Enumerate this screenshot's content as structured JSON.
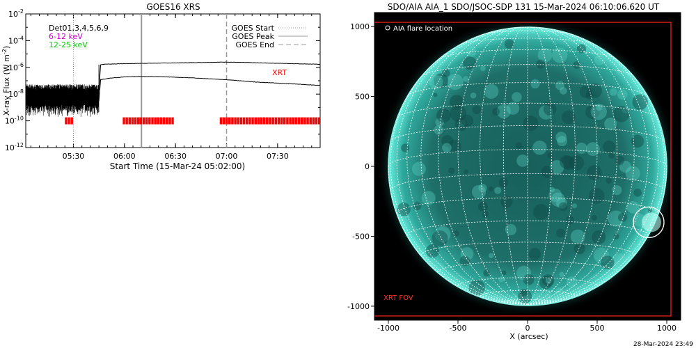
{
  "footer_timestamp": "28-Mar-2024 23:49",
  "chart_data": [
    {
      "type": "line",
      "title": "GOES16 XRS",
      "xlabel": "Start Time (15-Mar-24 05:02:00)",
      "ylabel": "X-ray Flux (W m",
      "ylabel_sup": "-2",
      "ylabel_close": ")",
      "ylim": [
        1e-12,
        0.01
      ],
      "log_y": true,
      "xlim_minutes_after_start": [
        0,
        173
      ],
      "xtick_labels": [
        "05:30",
        "06:00",
        "06:30",
        "07:00",
        "07:30"
      ],
      "xticks_minutes": [
        28,
        58,
        88,
        118,
        148
      ],
      "ytick_labels": [
        {
          "base": "10",
          "exp": "-2",
          "value": 0.01
        },
        {
          "base": "10",
          "exp": "-4",
          "value": 0.0001
        },
        {
          "base": "10",
          "exp": "-6",
          "value": 1e-06
        },
        {
          "base": "10",
          "exp": "-8",
          "value": 1e-08
        },
        {
          "base": "10",
          "exp": "-10",
          "value": 1e-10
        },
        {
          "base": "10",
          "exp": "-12",
          "value": 1e-12
        }
      ],
      "info_lines": [
        {
          "text": "Det01,3,4,5,6,9",
          "color": "#000000"
        },
        {
          "text": "6-12 keV",
          "color": "#cc00cc"
        },
        {
          "text": "12-25 keV",
          "color": "#00cc00"
        }
      ],
      "legend": [
        {
          "label": "GOES Start",
          "style": "dotted"
        },
        {
          "label": "GOES Peak",
          "style": "solid"
        },
        {
          "label": "GOES End",
          "style": "dashed"
        }
      ],
      "event_lines_minutes": {
        "start": 28,
        "peak": 68,
        "end": 118
      },
      "series": [
        {
          "key": "long",
          "t": [
            0,
            42,
            43,
            44,
            47,
            55,
            68,
            80,
            100,
            118,
            130,
            150,
            173
          ],
          "values": [
            1.5e-08,
            1.8e-08,
            2e-08,
            1.6e-06,
            1.75e-06,
            1.85e-06,
            2e-06,
            2.1e-06,
            2.3e-06,
            2.5e-06,
            2.3e-06,
            2e-06,
            1.7e-06
          ]
        },
        {
          "key": "short",
          "t": [
            0,
            42,
            43,
            44,
            50,
            60,
            68,
            80,
            100,
            118,
            135,
            155,
            173
          ],
          "values": [
            2.2e-09,
            2.5e-09,
            3e-09,
            1.2e-07,
            1.6e-07,
            2e-07,
            2.1e-07,
            2e-07,
            1.6e-07,
            1.2e-07,
            8e-08,
            6e-08,
            4.5e-08
          ]
        }
      ],
      "xrt_label": "XRT",
      "xrt_observation_windows_minutes": [
        [
          23,
          28
        ],
        [
          57,
          67
        ],
        [
          67,
          87
        ],
        [
          114,
          173
        ]
      ]
    },
    {
      "type": "scatter",
      "title": "SDO/AIA AIA_1 SDO/JSOC-SDP 131 15-Mar-2024 06:10:06.620 UT",
      "xlabel": "X (arcsec)",
      "ylabel": "",
      "xlim": [
        -1100,
        1100
      ],
      "ylim": [
        -1100,
        1100
      ],
      "xtick_labels": [
        "-1000",
        "-500",
        "0",
        "500",
        "1000"
      ],
      "xticks": [
        -1000,
        -500,
        0,
        500,
        1000
      ],
      "ytick_labels": [
        "1000",
        "500",
        "0",
        "-500",
        "-1000"
      ],
      "yticks": [
        1000,
        500,
        0,
        -500,
        -1000
      ],
      "solar_radius_arcsec": 1000,
      "legend_label": "AIA flare location",
      "fov_label": "XRT FOV",
      "xrt_fov": {
        "x": [
          -1110,
          1030
        ],
        "y": [
          -1070,
          1030
        ]
      },
      "flare_location": {
        "x": 870,
        "y": -400,
        "r": 110
      },
      "colors": {
        "disk": "#1f7f78",
        "limb": "#55e8d8",
        "fov": "#ff2020",
        "grid": "#ffffff"
      }
    }
  ]
}
